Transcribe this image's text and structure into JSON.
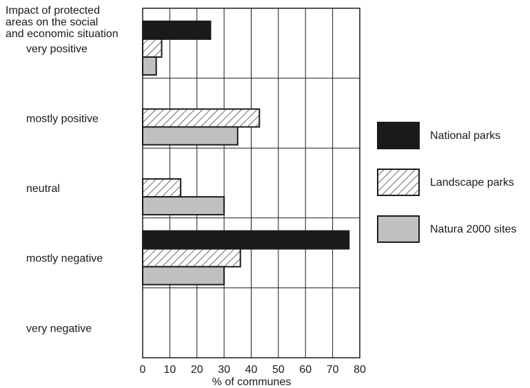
{
  "chart_data": {
    "type": "bar",
    "orientation": "horizontal",
    "title": [
      "Impact of protected",
      "areas on the social",
      "and economic situation"
    ],
    "categories": [
      "very positive",
      "mostly positive",
      "neutral",
      "mostly negative",
      "very negative"
    ],
    "series": [
      {
        "name": "National parks",
        "values": [
          25,
          0,
          0,
          76,
          0
        ],
        "fill": "#1a1a1a",
        "pattern": "solid"
      },
      {
        "name": "Landscape parks",
        "values": [
          7,
          43,
          14,
          36,
          0
        ],
        "fill": "#ffffff",
        "pattern": "hatch"
      },
      {
        "name": "Natura 2000 sites",
        "values": [
          5,
          35,
          30,
          30,
          0
        ],
        "fill": "#c0c0c0",
        "pattern": "solid"
      }
    ],
    "xlabel": "% of communes",
    "xlim": [
      0,
      80
    ],
    "xticks": [
      0,
      10,
      20,
      30,
      40,
      50,
      60,
      70,
      80
    ],
    "grid": true,
    "legend_position": "right"
  }
}
